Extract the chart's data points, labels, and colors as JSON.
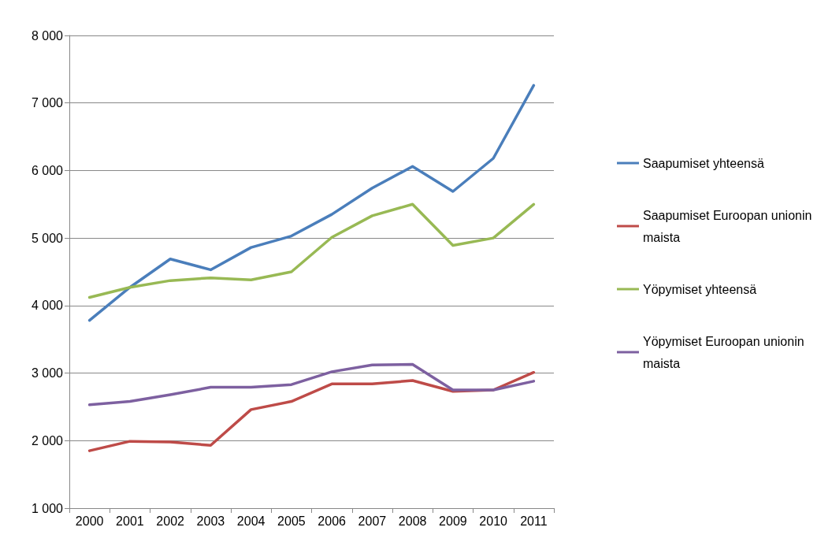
{
  "chart_data": {
    "type": "line",
    "categories": [
      "2000",
      "2001",
      "2002",
      "2003",
      "2004",
      "2005",
      "2006",
      "2007",
      "2008",
      "2009",
      "2010",
      "2011"
    ],
    "series": [
      {
        "name": "Saapumiset yhteensä",
        "color": "#4a7ebb",
        "values": [
          3780,
          4270,
          4690,
          4530,
          4860,
          5030,
          5350,
          5740,
          6060,
          5690,
          6180,
          7260
        ]
      },
      {
        "name": "Saapumiset Euroopan unionin maista",
        "color": "#be4b48",
        "values": [
          1850,
          1990,
          1980,
          1930,
          2460,
          2580,
          2840,
          2840,
          2890,
          2730,
          2750,
          3010
        ]
      },
      {
        "name": "Yöpymiset yhteensä",
        "color": "#98b954",
        "values": [
          4120,
          4270,
          4370,
          4410,
          4380,
          4500,
          5010,
          5330,
          5500,
          4890,
          5000,
          5500
        ]
      },
      {
        "name": "Yöpymiset Euroopan unionin maista",
        "color": "#7d60a0",
        "values": [
          2530,
          2580,
          2680,
          2790,
          2790,
          2830,
          3020,
          3120,
          3130,
          2750,
          2750,
          2880
        ]
      }
    ],
    "ylim": [
      1000,
      8000
    ],
    "yticks": [
      {
        "value": 1000,
        "label": "1 000"
      },
      {
        "value": 2000,
        "label": "2 000"
      },
      {
        "value": 3000,
        "label": "3 000"
      },
      {
        "value": 4000,
        "label": "4 000"
      },
      {
        "value": 5000,
        "label": "5 000"
      },
      {
        "value": 6000,
        "label": "6 000"
      },
      {
        "value": 7000,
        "label": "7 000"
      },
      {
        "value": 8000,
        "label": "8 000"
      }
    ],
    "grid": "y",
    "legend": "right",
    "marker": "none",
    "line_style": "solid"
  }
}
